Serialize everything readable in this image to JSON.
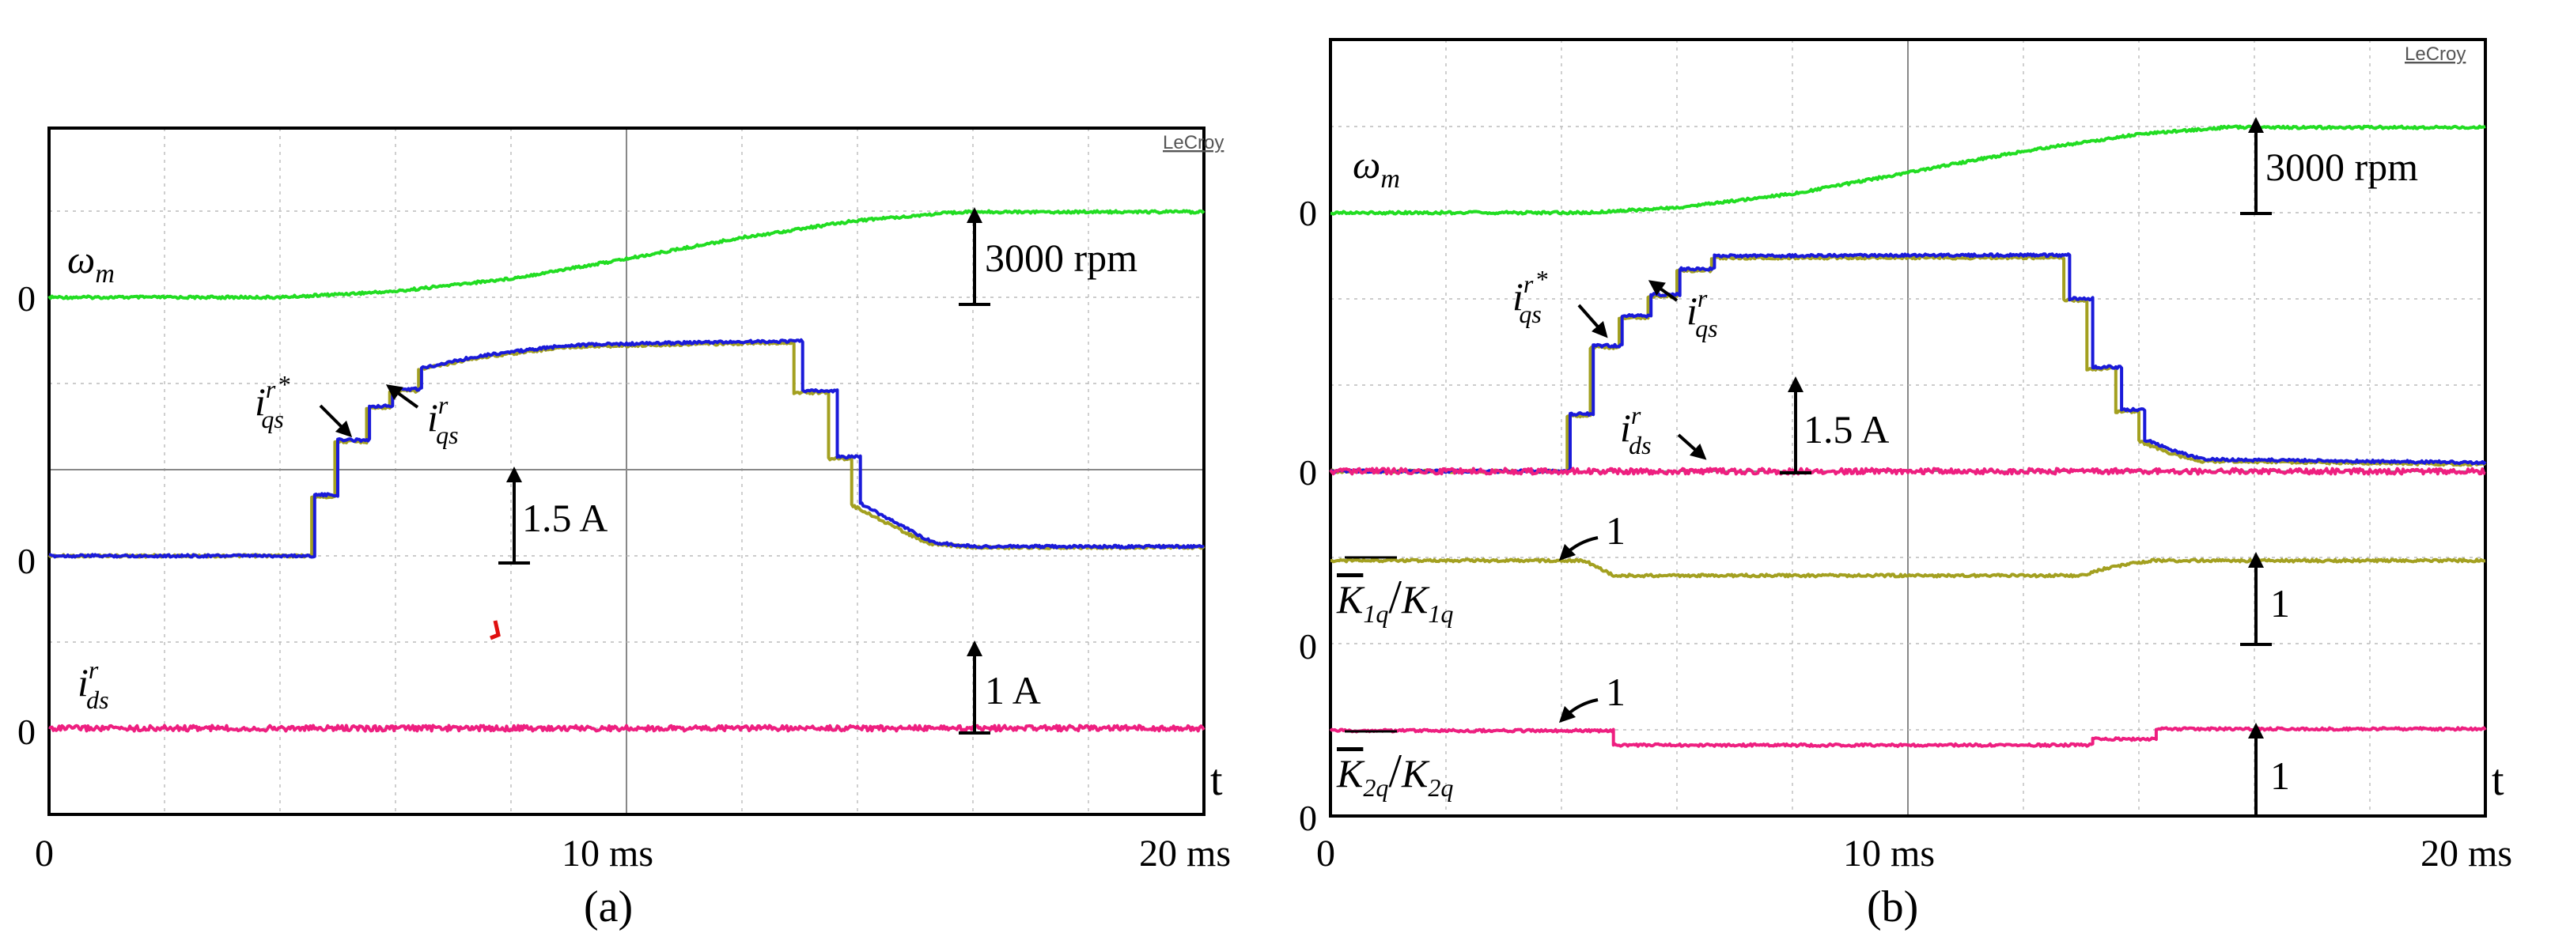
{
  "chart_data": [
    {
      "type": "line",
      "panel_label": "(a)",
      "brand": "LeCroy",
      "x_ticks": [
        "0",
        "10 ms",
        "20 ms"
      ],
      "x_axis_label": "t",
      "xlim": [
        0,
        20
      ],
      "x_unit": "ms",
      "zero_labels": [
        "0",
        "0",
        "0"
      ],
      "series": [
        {
          "name": "speed",
          "label": "ωm",
          "color": "#22dd22",
          "baseline_div": 6,
          "scale": "3000 rpm/div",
          "points": [
            [
              0,
              0
            ],
            [
              4,
              0
            ],
            [
              6,
              0.07
            ],
            [
              8,
              0.22
            ],
            [
              10,
              0.45
            ],
            [
              12,
              0.7
            ],
            [
              14,
              0.9
            ],
            [
              15.8,
              1.0
            ],
            [
              20,
              1.0
            ]
          ]
        },
        {
          "name": "iqs_ref",
          "label": "iqs r*",
          "color": "#a3a020",
          "baseline_div": 3,
          "scale": "1.5 A/div",
          "points": [
            [
              0,
              0
            ],
            [
              4.55,
              0
            ],
            [
              4.55,
              0.7
            ],
            [
              4.95,
              0.7
            ],
            [
              4.95,
              1.35
            ],
            [
              5.5,
              1.35
            ],
            [
              5.5,
              1.75
            ],
            [
              5.9,
              1.75
            ],
            [
              5.9,
              1.95
            ],
            [
              6.4,
              1.95
            ],
            [
              6.4,
              2.2
            ],
            [
              7.5,
              2.35
            ],
            [
              9,
              2.47
            ],
            [
              11,
              2.5
            ],
            [
              12.9,
              2.52
            ],
            [
              12.9,
              1.93
            ],
            [
              13.5,
              1.93
            ],
            [
              13.5,
              1.15
            ],
            [
              13.9,
              1.15
            ],
            [
              13.9,
              0.6
            ],
            [
              15.2,
              0.15
            ],
            [
              16,
              0.1
            ],
            [
              20,
              0.1
            ]
          ]
        },
        {
          "name": "iqs",
          "label": "iqs r",
          "color": "#1a1ad9",
          "baseline_div": 3,
          "scale": "1.5 A/div",
          "points": [
            [
              0,
              0
            ],
            [
              4.6,
              0
            ],
            [
              4.6,
              0.72
            ],
            [
              5.0,
              0.72
            ],
            [
              5.0,
              1.37
            ],
            [
              5.55,
              1.37
            ],
            [
              5.55,
              1.77
            ],
            [
              5.95,
              1.77
            ],
            [
              5.95,
              1.97
            ],
            [
              6.45,
              1.97
            ],
            [
              6.45,
              2.22
            ],
            [
              7.5,
              2.37
            ],
            [
              9,
              2.49
            ],
            [
              11,
              2.52
            ],
            [
              13.05,
              2.54
            ],
            [
              13.05,
              1.95
            ],
            [
              13.65,
              1.95
            ],
            [
              13.65,
              1.17
            ],
            [
              14.05,
              1.17
            ],
            [
              14.05,
              0.62
            ],
            [
              15.3,
              0.16
            ],
            [
              16,
              0.11
            ],
            [
              20,
              0.11
            ]
          ]
        },
        {
          "name": "ids",
          "label": "ids r",
          "color": "#ee1f80",
          "baseline_div": 1,
          "scale": "1 A/div",
          "points": [
            [
              0,
              0
            ],
            [
              20,
              0
            ]
          ]
        }
      ],
      "annotations": [
        "3000 rpm",
        "1.5 A",
        "1 A"
      ]
    },
    {
      "type": "line",
      "panel_label": "(b)",
      "brand": "LeCroy",
      "x_ticks": [
        "0",
        "10 ms",
        "20 ms"
      ],
      "x_axis_label": "t",
      "xlim": [
        0,
        20
      ],
      "x_unit": "ms",
      "zero_labels": [
        "0",
        "0",
        "0",
        "0"
      ],
      "series": [
        {
          "name": "speed",
          "label": "ωm",
          "color": "#22dd22",
          "baseline_div": 7,
          "scale": "3000 rpm/div",
          "points": [
            [
              0,
              0
            ],
            [
              4.5,
              0
            ],
            [
              6,
              0.06
            ],
            [
              8,
              0.22
            ],
            [
              10,
              0.47
            ],
            [
              12,
              0.72
            ],
            [
              14,
              0.92
            ],
            [
              15.5,
              1.0
            ],
            [
              20,
              1.0
            ]
          ]
        },
        {
          "name": "iqs_ref",
          "label": "iqs r*",
          "color": "#a3a020",
          "baseline_div": 4,
          "scale": "1.5 A/div",
          "points": [
            [
              0,
              0
            ],
            [
              4.1,
              0
            ],
            [
              4.1,
              0.65
            ],
            [
              4.5,
              0.65
            ],
            [
              4.5,
              1.45
            ],
            [
              5.0,
              1.45
            ],
            [
              5.0,
              1.8
            ],
            [
              5.5,
              1.8
            ],
            [
              5.5,
              2.05
            ],
            [
              6.0,
              2.05
            ],
            [
              6.0,
              2.35
            ],
            [
              6.6,
              2.35
            ],
            [
              6.6,
              2.5
            ],
            [
              10,
              2.5
            ],
            [
              12.7,
              2.5
            ],
            [
              12.7,
              2.0
            ],
            [
              13.1,
              2.0
            ],
            [
              13.1,
              1.2
            ],
            [
              13.6,
              1.2
            ],
            [
              13.6,
              0.7
            ],
            [
              14.0,
              0.7
            ],
            [
              14.0,
              0.35
            ],
            [
              14.6,
              0.2
            ],
            [
              15,
              0.12
            ],
            [
              20,
              0.08
            ]
          ]
        },
        {
          "name": "iqs",
          "label": "iqs r",
          "color": "#1a1ad9",
          "baseline_div": 4,
          "scale": "1.5 A/div",
          "points": [
            [
              0,
              0
            ],
            [
              4.15,
              0
            ],
            [
              4.15,
              0.67
            ],
            [
              4.55,
              0.67
            ],
            [
              4.55,
              1.47
            ],
            [
              5.05,
              1.47
            ],
            [
              5.05,
              1.82
            ],
            [
              5.55,
              1.82
            ],
            [
              5.55,
              2.07
            ],
            [
              6.05,
              2.07
            ],
            [
              6.05,
              2.37
            ],
            [
              6.65,
              2.37
            ],
            [
              6.65,
              2.52
            ],
            [
              10,
              2.53
            ],
            [
              12.8,
              2.53
            ],
            [
              12.8,
              2.02
            ],
            [
              13.2,
              2.02
            ],
            [
              13.2,
              1.22
            ],
            [
              13.7,
              1.22
            ],
            [
              13.7,
              0.72
            ],
            [
              14.1,
              0.72
            ],
            [
              14.1,
              0.37
            ],
            [
              14.7,
              0.22
            ],
            [
              15.1,
              0.14
            ],
            [
              20,
              0.1
            ]
          ]
        },
        {
          "name": "ids",
          "label": "ids r",
          "color": "#ee1f80",
          "baseline_div": 4,
          "scale": "1.5 A/div",
          "points": [
            [
              0,
              0
            ],
            [
              20,
              0
            ]
          ]
        },
        {
          "name": "K1q_ratio",
          "label": "K̄1q/K1q",
          "color": "#a3a020",
          "baseline_div": 2,
          "scale": "1/div",
          "points": [
            [
              0,
              1
            ],
            [
              4.4,
              1
            ],
            [
              4.9,
              0.82
            ],
            [
              13.0,
              0.82
            ],
            [
              13.0,
              0.82
            ],
            [
              13.5,
              0.92
            ],
            [
              13.5,
              0.92
            ],
            [
              14.2,
              1.0
            ],
            [
              20,
              1.0
            ]
          ]
        },
        {
          "name": "K2q_ratio",
          "label": "K̄2q/K2q",
          "color": "#ee1f80",
          "baseline_div": 0,
          "scale": "1/div",
          "points": [
            [
              0,
              1
            ],
            [
              4.9,
              1
            ],
            [
              4.9,
              0.83
            ],
            [
              13.2,
              0.83
            ],
            [
              13.2,
              0.9
            ],
            [
              14.3,
              0.9
            ],
            [
              14.3,
              1.02
            ],
            [
              20,
              1.02
            ]
          ]
        }
      ],
      "annotations": [
        "3000 rpm",
        "1.5 A",
        "1",
        "1",
        "1",
        "1"
      ]
    }
  ]
}
